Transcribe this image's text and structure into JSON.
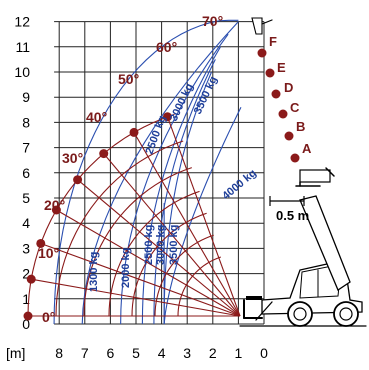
{
  "chart_data": {
    "type": "load-chart",
    "x_unit": "[m]",
    "x_ticks": [
      8,
      7,
      6,
      5,
      4,
      3,
      2,
      1,
      0
    ],
    "y_ticks": [
      0,
      1,
      2,
      3,
      4,
      5,
      6,
      7,
      8,
      9,
      10,
      11,
      12
    ],
    "xlim": [
      8,
      0
    ],
    "ylim": [
      0,
      12
    ],
    "boom_angles": [
      {
        "label": "0°",
        "deg": 0
      },
      {
        "label": "10°",
        "deg": 10
      },
      {
        "label": "20°",
        "deg": 20
      },
      {
        "label": "30°",
        "deg": 30
      },
      {
        "label": "40°",
        "deg": 40
      },
      {
        "label": "50°",
        "deg": 50
      },
      {
        "label": "60°",
        "deg": 60
      },
      {
        "label": "70°",
        "deg": 70
      }
    ],
    "extension_positions": [
      {
        "label": "A",
        "radius_m": 6.1
      },
      {
        "label": "B",
        "radius_m": 7.0
      },
      {
        "label": "C",
        "radius_m": 7.8
      },
      {
        "label": "D",
        "radius_m": 8.6
      },
      {
        "label": "E",
        "radius_m": 9.4
      },
      {
        "label": "F",
        "radius_m": 10.2
      }
    ],
    "load_curves": [
      {
        "label": "1300 kg",
        "x_at_base": 7.1
      },
      {
        "label": "2000 kg",
        "x_at_base": 5.6
      },
      {
        "label": "2500 kg",
        "x_at_base": 4.75
      },
      {
        "label": "3000 kg",
        "x_at_base": 4.3
      },
      {
        "label": "3500 kg",
        "x_at_base": 3.9
      },
      {
        "label": "2500 kg",
        "x_at_base": 4.75
      },
      {
        "label": "3000 kg",
        "x_at_base": 4.3
      },
      {
        "label": "3500 kg",
        "x_at_base": 3.9
      },
      {
        "label": "4000 kg",
        "x_at_base": 3.9
      }
    ],
    "scale_label": "0.5 m"
  }
}
